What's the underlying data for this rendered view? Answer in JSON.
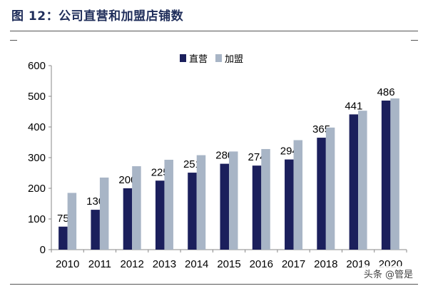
{
  "figure": {
    "title": "图 12：公司直营和加盟店铺数",
    "watermark": "头条 @管是"
  },
  "colors": {
    "series_direct": "#1b1f5c",
    "series_franchise": "#a8b5c6",
    "title": "#1f2d5a",
    "axis": "#888888",
    "text": "#000000"
  },
  "chart_data": {
    "type": "bar",
    "categories": [
      "2010",
      "2011",
      "2012",
      "2013",
      "2014",
      "2015",
      "2016",
      "2017",
      "2018",
      "2019",
      "2020"
    ],
    "series": [
      {
        "name": "直营",
        "values": [
          75,
          130,
          200,
          225,
          251,
          280,
          274,
          294,
          365,
          441,
          486
        ],
        "labeled": true
      },
      {
        "name": "加盟",
        "values": [
          185,
          235,
          272,
          293,
          308,
          320,
          328,
          357,
          398,
          453,
          493
        ],
        "labeled": false
      }
    ],
    "ylim": [
      0,
      600
    ],
    "yticks": [
      0,
      100,
      200,
      300,
      400,
      500,
      600
    ],
    "legend_position": "top-center",
    "grid": false
  }
}
